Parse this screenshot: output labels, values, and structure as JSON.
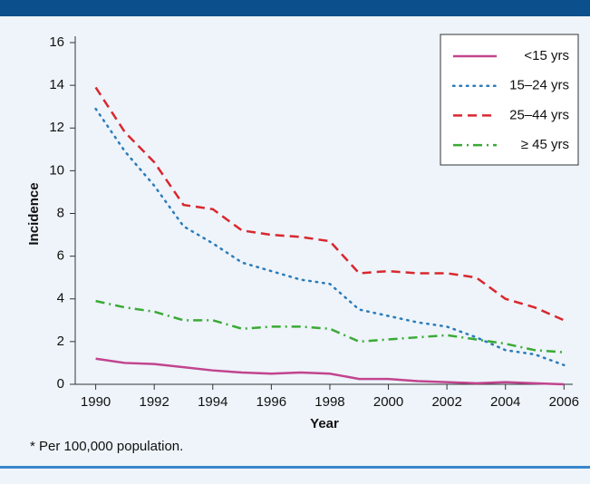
{
  "chart_data": {
    "type": "line",
    "x": [
      1990,
      1991,
      1992,
      1993,
      1994,
      1995,
      1996,
      1997,
      1998,
      1999,
      2000,
      2001,
      2002,
      2003,
      2004,
      2005,
      2006
    ],
    "series": [
      {
        "name": "<15 yrs",
        "color": "#c2448e",
        "dash": "solid",
        "values": [
          1.2,
          1.0,
          0.95,
          0.8,
          0.65,
          0.55,
          0.5,
          0.55,
          0.5,
          0.25,
          0.25,
          0.15,
          0.1,
          0.05,
          0.1,
          0.05,
          0.0
        ]
      },
      {
        "name": "15–24 yrs",
        "color": "#2b7bba",
        "dash": "dotted",
        "values": [
          12.9,
          10.9,
          9.3,
          7.4,
          6.6,
          5.7,
          5.3,
          4.9,
          4.7,
          3.5,
          3.2,
          2.9,
          2.7,
          2.2,
          1.6,
          1.4,
          0.9
        ]
      },
      {
        "name": "25–44 yrs",
        "color": "#d9272e",
        "dash": "dashed",
        "values": [
          13.9,
          11.8,
          10.4,
          8.4,
          8.2,
          7.2,
          7.0,
          6.9,
          6.7,
          5.2,
          5.3,
          5.2,
          5.2,
          5.0,
          4.0,
          3.6,
          3.0
        ]
      },
      {
        "name": "≥ 45 yrs",
        "color": "#3aaa35",
        "dash": "dashdot",
        "values": [
          3.9,
          3.6,
          3.4,
          3.0,
          3.0,
          2.6,
          2.7,
          2.7,
          2.6,
          2.0,
          2.1,
          2.2,
          2.3,
          2.1,
          1.9,
          1.6,
          1.5
        ]
      }
    ],
    "xlabel": "Year",
    "ylabel": "Incidence",
    "xlim": [
      1989.3,
      2006.3
    ],
    "ylim": [
      0,
      16
    ],
    "xticks": [
      1990,
      1992,
      1994,
      1996,
      1998,
      2000,
      2002,
      2004,
      2006
    ],
    "yticks": [
      0,
      2,
      4,
      6,
      8,
      10,
      12,
      14,
      16
    ],
    "legend": "upper right",
    "footnote": "* Per 100,000 population."
  }
}
